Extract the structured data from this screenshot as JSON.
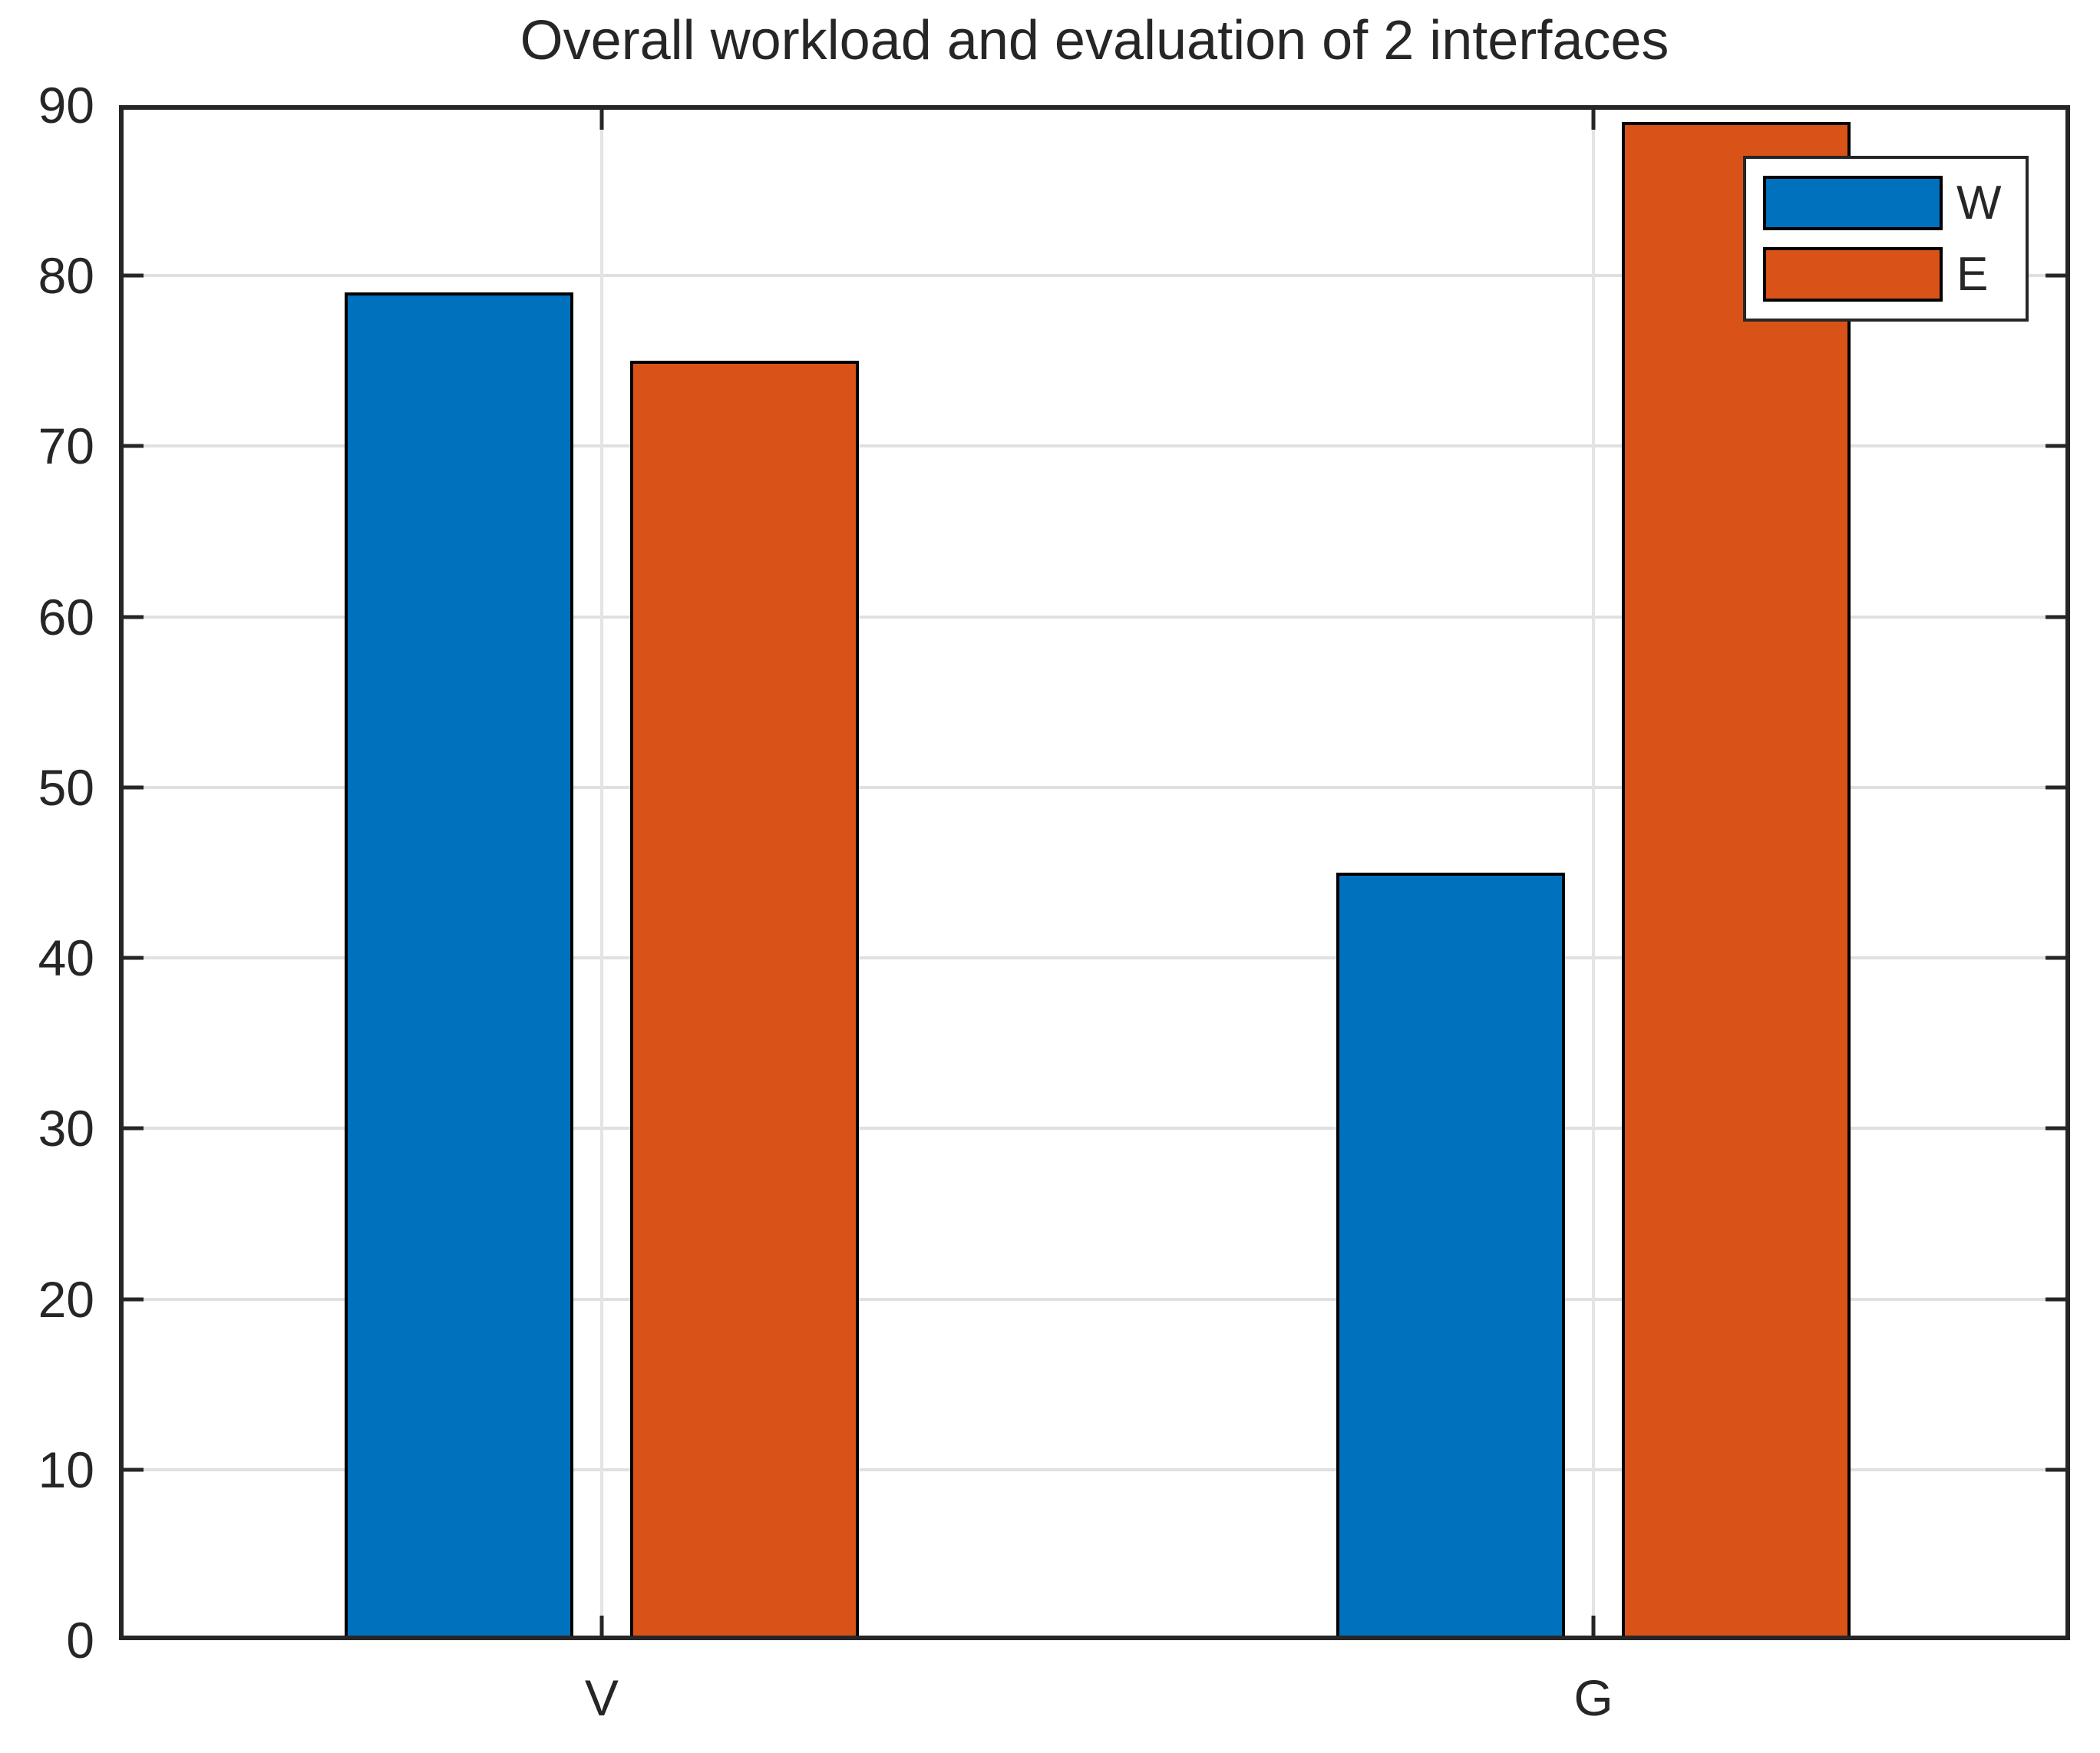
{
  "title": "Overall workload and evaluation of 2 interfaces",
  "chart_data": {
    "type": "bar",
    "title": "Overall workload and evaluation of 2 interfaces",
    "categories": [
      "V",
      "G"
    ],
    "series": [
      {
        "name": "W",
        "color": "#0072BD",
        "values": [
          79,
          45
        ]
      },
      {
        "name": "E",
        "color": "#D95319",
        "values": [
          75,
          89
        ]
      }
    ],
    "xlabel": "",
    "ylabel": "",
    "ylim": [
      0,
      90
    ],
    "yticks": [
      0,
      10,
      20,
      30,
      40,
      50,
      60,
      70,
      80,
      90
    ],
    "grid": true,
    "legend_position": "northeast"
  },
  "colors": {
    "axis": "#262626",
    "grid": "#e0e0e0",
    "bar_edge": "#000000",
    "background": "#ffffff"
  }
}
